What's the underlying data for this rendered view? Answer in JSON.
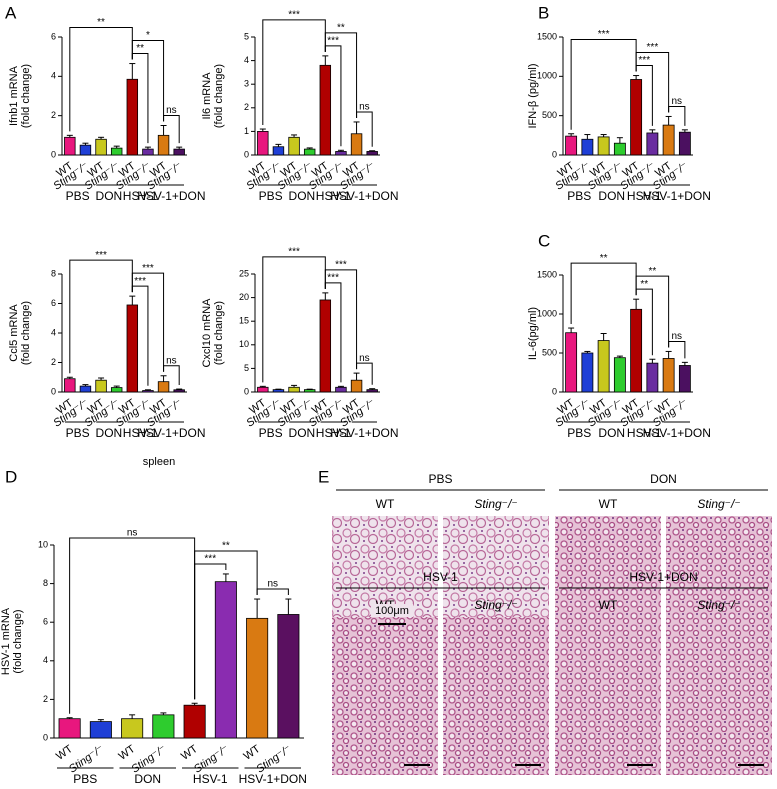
{
  "chart_data": [
    {
      "type": "bar",
      "panel": "A",
      "ylabel": [
        "Ifnb1 mRNA",
        "(fold change)"
      ],
      "categories": [
        "WT",
        "Sting⁻/⁻",
        "WT",
        "Sting⁻/⁻",
        "WT",
        "Sting⁻/⁻",
        "WT",
        "Sting⁻/⁻"
      ],
      "groups": [
        "PBS",
        "DON",
        "HSV-1",
        "HSV-1+DON"
      ],
      "values": [
        0.9,
        0.5,
        0.8,
        0.35,
        3.85,
        0.3,
        1.0,
        0.3
      ],
      "errors": [
        0.1,
        0.1,
        0.1,
        0.1,
        0.8,
        0.1,
        0.5,
        0.1
      ],
      "colors": [
        "#e8177e",
        "#1f3fd6",
        "#c8c81e",
        "#2ecc2e",
        "#b00000",
        "#6a2ca0",
        "#d97a12",
        "#4b1060"
      ],
      "ylim": [
        0,
        6
      ],
      "yticks": [
        0,
        2,
        4,
        6
      ],
      "comparisons": [
        {
          "pair": [
            0,
            4
          ],
          "label": "**"
        },
        {
          "pair": [
            4,
            5
          ],
          "label": "**"
        },
        {
          "pair": [
            4,
            6
          ],
          "label": "*"
        },
        {
          "pair": [
            6,
            7
          ],
          "label": "ns"
        }
      ]
    },
    {
      "type": "bar",
      "ylabel": [
        "Il6 mRNA",
        "(fold change)"
      ],
      "categories": [
        "WT",
        "Sting⁻/⁻",
        "WT",
        "Sting⁻/⁻",
        "WT",
        "Sting⁻/⁻",
        "WT",
        "Sting⁻/⁻"
      ],
      "groups": [
        "PBS",
        "DON",
        "HSV-1",
        "HSV-1+DON"
      ],
      "values": [
        1.0,
        0.35,
        0.75,
        0.25,
        3.8,
        0.15,
        0.9,
        0.15
      ],
      "errors": [
        0.1,
        0.1,
        0.1,
        0.05,
        0.4,
        0.05,
        0.5,
        0.03
      ],
      "colors": [
        "#e8177e",
        "#1f3fd6",
        "#c8c81e",
        "#2ecc2e",
        "#b00000",
        "#6a2ca0",
        "#d97a12",
        "#4b1060"
      ],
      "ylim": [
        0,
        5
      ],
      "yticks": [
        0,
        1,
        2,
        3,
        4,
        5
      ],
      "comparisons": [
        {
          "pair": [
            0,
            4
          ],
          "label": "***"
        },
        {
          "pair": [
            4,
            5
          ],
          "label": "***"
        },
        {
          "pair": [
            4,
            6
          ],
          "label": "**"
        },
        {
          "pair": [
            6,
            7
          ],
          "label": "ns"
        }
      ]
    },
    {
      "type": "bar",
      "panel": "B",
      "ylabel": [
        "IFN-β (pg/ml)"
      ],
      "categories": [
        "WT",
        "Sting⁻/⁻",
        "WT",
        "Sting⁻/⁻",
        "WT",
        "Sting⁻/⁻",
        "WT",
        "Sting⁻/⁻"
      ],
      "groups": [
        "PBS",
        "DON",
        "HSV-1",
        "HSV-1+DON"
      ],
      "values": [
        240,
        200,
        230,
        150,
        960,
        280,
        380,
        290
      ],
      "errors": [
        30,
        60,
        30,
        70,
        50,
        40,
        110,
        30
      ],
      "colors": [
        "#e8177e",
        "#1f3fd6",
        "#c8c81e",
        "#2ecc2e",
        "#b00000",
        "#6a2ca0",
        "#d97a12",
        "#4b1060"
      ],
      "ylim": [
        0,
        1500
      ],
      "yticks": [
        0,
        500,
        1000,
        1500
      ],
      "comparisons": [
        {
          "pair": [
            0,
            4
          ],
          "label": "***"
        },
        {
          "pair": [
            4,
            5
          ],
          "label": "***"
        },
        {
          "pair": [
            4,
            6
          ],
          "label": "***"
        },
        {
          "pair": [
            6,
            7
          ],
          "label": "ns"
        }
      ]
    },
    {
      "type": "bar",
      "ylabel": [
        "Ccl5 mRNA",
        "(fold change)"
      ],
      "categories": [
        "WT",
        "Sting⁻/⁻",
        "WT",
        "Sting⁻/⁻",
        "WT",
        "Sting⁻/⁻",
        "WT",
        "Sting⁻/⁻"
      ],
      "groups": [
        "PBS",
        "DON",
        "HSV-1",
        "HSV-1+DON"
      ],
      "values": [
        0.9,
        0.4,
        0.8,
        0.3,
        5.9,
        0.1,
        0.7,
        0.15
      ],
      "errors": [
        0.1,
        0.1,
        0.15,
        0.1,
        0.6,
        0.05,
        0.4,
        0.05
      ],
      "colors": [
        "#e8177e",
        "#1f3fd6",
        "#c8c81e",
        "#2ecc2e",
        "#b00000",
        "#6a2ca0",
        "#d97a12",
        "#4b1060"
      ],
      "ylim": [
        0,
        8
      ],
      "yticks": [
        0,
        2,
        4,
        6,
        8
      ],
      "comparisons": [
        {
          "pair": [
            0,
            4
          ],
          "label": "***"
        },
        {
          "pair": [
            4,
            5
          ],
          "label": "***"
        },
        {
          "pair": [
            4,
            6
          ],
          "label": "***"
        },
        {
          "pair": [
            6,
            7
          ],
          "label": "ns"
        }
      ]
    },
    {
      "type": "bar",
      "ylabel": [
        "Cxcl10 mRNA",
        "(fold change)"
      ],
      "categories": [
        "WT",
        "Sting⁻/⁻",
        "WT",
        "Sting⁻/⁻",
        "WT",
        "Sting⁻/⁻",
        "WT",
        "Sting⁻/⁻"
      ],
      "groups": [
        "PBS",
        "DON",
        "HSV-1",
        "HSV-1+DON"
      ],
      "values": [
        1.0,
        0.5,
        1.0,
        0.5,
        19.5,
        1.0,
        2.5,
        0.5
      ],
      "errors": [
        0.2,
        0.1,
        0.4,
        0.1,
        1.5,
        0.2,
        1.5,
        0.2
      ],
      "colors": [
        "#e8177e",
        "#1f3fd6",
        "#c8c81e",
        "#2ecc2e",
        "#b00000",
        "#6a2ca0",
        "#d97a12",
        "#4b1060"
      ],
      "ylim": [
        0,
        25
      ],
      "yticks": [
        0,
        5,
        10,
        15,
        20,
        25
      ],
      "comparisons": [
        {
          "pair": [
            0,
            4
          ],
          "label": "***"
        },
        {
          "pair": [
            4,
            5
          ],
          "label": "***"
        },
        {
          "pair": [
            4,
            6
          ],
          "label": "***"
        },
        {
          "pair": [
            6,
            7
          ],
          "label": "ns"
        }
      ]
    },
    {
      "type": "bar",
      "panel": "C",
      "ylabel": [
        "IL-6(pg/ml)"
      ],
      "categories": [
        "WT",
        "Sting⁻/⁻",
        "WT",
        "Sting⁻/⁻",
        "WT",
        "Sting⁻/⁻",
        "WT",
        "Sting⁻/⁻"
      ],
      "groups": [
        "PBS",
        "DON",
        "HSV-1",
        "HSV-1+DON"
      ],
      "values": [
        760,
        500,
        660,
        440,
        1060,
        370,
        430,
        340
      ],
      "errors": [
        60,
        20,
        90,
        20,
        130,
        50,
        90,
        40
      ],
      "colors": [
        "#e8177e",
        "#1f3fd6",
        "#c8c81e",
        "#2ecc2e",
        "#b00000",
        "#6a2ca0",
        "#d97a12",
        "#4b1060"
      ],
      "ylim": [
        0,
        1500
      ],
      "yticks": [
        0,
        500,
        1000,
        1500
      ],
      "comparisons": [
        {
          "pair": [
            0,
            4
          ],
          "label": "**"
        },
        {
          "pair": [
            4,
            5
          ],
          "label": "**"
        },
        {
          "pair": [
            4,
            6
          ],
          "label": "**"
        },
        {
          "pair": [
            6,
            7
          ],
          "label": "ns"
        }
      ]
    },
    {
      "type": "bar",
      "panel": "D",
      "title": "spleen",
      "ylabel": [
        "HSV-1 mRNA",
        "(fold change)"
      ],
      "categories": [
        "WT",
        "Sting⁻/⁻",
        "WT",
        "Sting⁻/⁻",
        "WT",
        "Sting⁻/⁻",
        "WT",
        "Sting⁻/⁻"
      ],
      "groups": [
        "PBS",
        "DON",
        "HSV-1",
        "HSV-1+DON"
      ],
      "values": [
        1.0,
        0.85,
        1.0,
        1.2,
        1.7,
        8.1,
        6.2,
        6.4
      ],
      "errors": [
        0.05,
        0.1,
        0.2,
        0.1,
        0.1,
        0.4,
        1.0,
        0.8
      ],
      "colors": [
        "#e8177e",
        "#1f3fd6",
        "#c8c81e",
        "#2ecc2e",
        "#b00000",
        "#8a2cb0",
        "#d97a12",
        "#5a1060"
      ],
      "ylim": [
        0,
        10
      ],
      "yticks": [
        0,
        2,
        4,
        6,
        8,
        10
      ],
      "comparisons": [
        {
          "pair": [
            0,
            4
          ],
          "label": "ns"
        },
        {
          "pair": [
            4,
            5
          ],
          "label": "***"
        },
        {
          "pair": [
            4,
            6
          ],
          "label": "**"
        },
        {
          "pair": [
            6,
            7
          ],
          "label": "ns"
        }
      ]
    }
  ],
  "histology": {
    "panel": "E",
    "groups": [
      "PBS",
      "DON",
      "HSV-1",
      "HSV-1+DON"
    ],
    "genotypes": [
      "WT",
      "Sting⁻/⁻"
    ],
    "scale_bar": "100μm"
  }
}
